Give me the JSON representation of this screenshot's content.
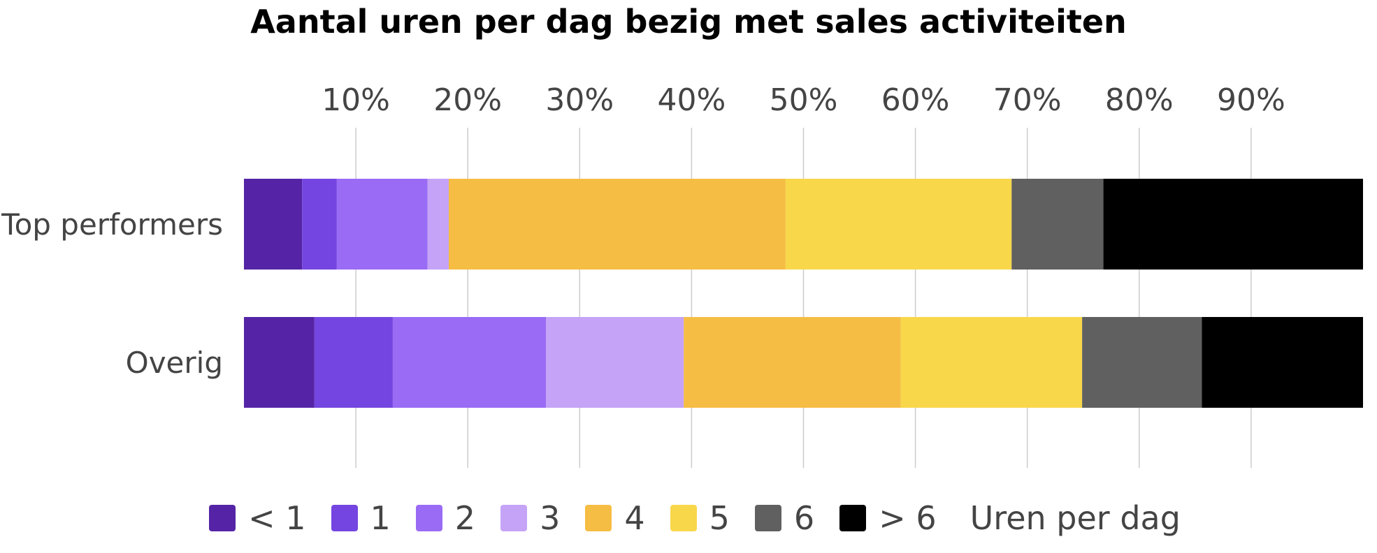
{
  "chart_data": {
    "type": "bar",
    "orientation": "horizontal",
    "stacked": true,
    "title": "Aantal uren per dag bezig met sales activiteiten",
    "categories": [
      "Top performers",
      "Overig"
    ],
    "x_ticks": [
      "10%",
      "20%",
      "30%",
      "40%",
      "50%",
      "60%",
      "70%",
      "80%",
      "90%"
    ],
    "x_tick_values": [
      10,
      20,
      30,
      40,
      50,
      60,
      70,
      80,
      90
    ],
    "xlim": [
      0,
      100
    ],
    "grid": true,
    "legend_position": "bottom",
    "legend_title": "Uren per dag",
    "series": [
      {
        "name": "< 1",
        "color": "#5524a6",
        "values": [
          5.2,
          6.3
        ]
      },
      {
        "name": "1",
        "color": "#7445e0",
        "values": [
          3.1,
          7.0
        ]
      },
      {
        "name": "2",
        "color": "#9a6bf5",
        "values": [
          8.1,
          13.7
        ]
      },
      {
        "name": "3",
        "color": "#c5a3f7",
        "values": [
          1.9,
          12.3
        ]
      },
      {
        "name": "4",
        "color": "#f6bd44",
        "values": [
          30.1,
          19.4
        ]
      },
      {
        "name": "5",
        "color": "#f8d74b",
        "values": [
          20.2,
          16.2
        ]
      },
      {
        "name": "6",
        "color": "#606060",
        "values": [
          8.2,
          10.7
        ]
      },
      {
        "name": "> 6",
        "color": "#000000",
        "values": [
          23.2,
          14.4
        ]
      }
    ]
  }
}
